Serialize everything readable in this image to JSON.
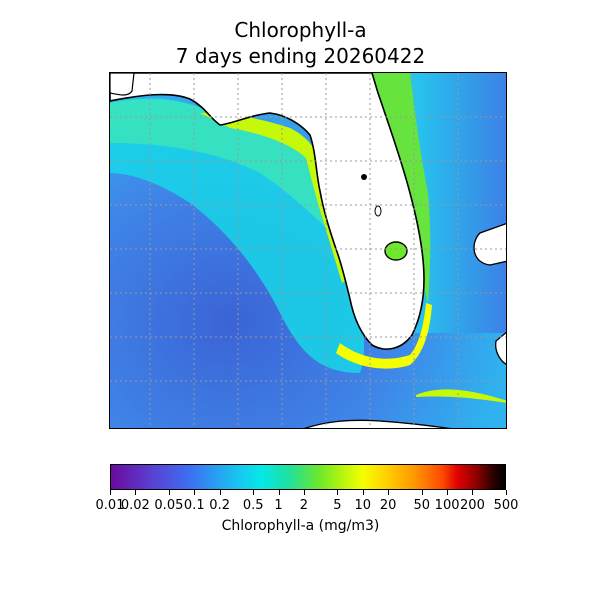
{
  "title": {
    "line1": "Chlorophyll-a",
    "line2": "7 days ending 20260422"
  },
  "map": {
    "region": "Florida peninsula and eastern Gulf of Mexico",
    "ocean_color_low": "#3f6fd8",
    "ocean_color_high": "#f5ff00",
    "land_color": "#ffffff",
    "gridlines": true
  },
  "colorbar": {
    "label": "Chlorophyll-a (mg/m3)",
    "scale": "log",
    "range": [
      0.01,
      500
    ],
    "ticks": [
      "0.01",
      "0.02",
      "0.05",
      "0.1",
      "0.2",
      "0.5",
      "1",
      "2",
      "5",
      "10",
      "20",
      "50",
      "100",
      "200",
      "500"
    ]
  }
}
